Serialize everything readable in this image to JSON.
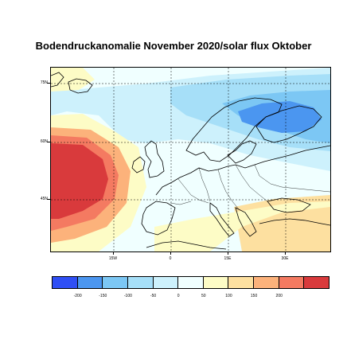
{
  "title": "Bodendruckanomalie November 2020/solar flux Oktober",
  "lat_labels": [
    "75N",
    "60N",
    "45N"
  ],
  "lon_labels": [
    "15W",
    "0",
    "15E",
    "30E"
  ],
  "colorbar": {
    "labels": [
      "-200",
      "-150",
      "-100",
      "-50",
      "0",
      "50",
      "100",
      "150",
      "200"
    ],
    "colors": [
      "#2f4ff5",
      "#4b96f0",
      "#7cc7f4",
      "#a6dff8",
      "#cdf1fc",
      "#f0ffff",
      "#fdfcc6",
      "#fde0a0",
      "#fcb27b",
      "#f47a61",
      "#d93a3c"
    ]
  }
}
